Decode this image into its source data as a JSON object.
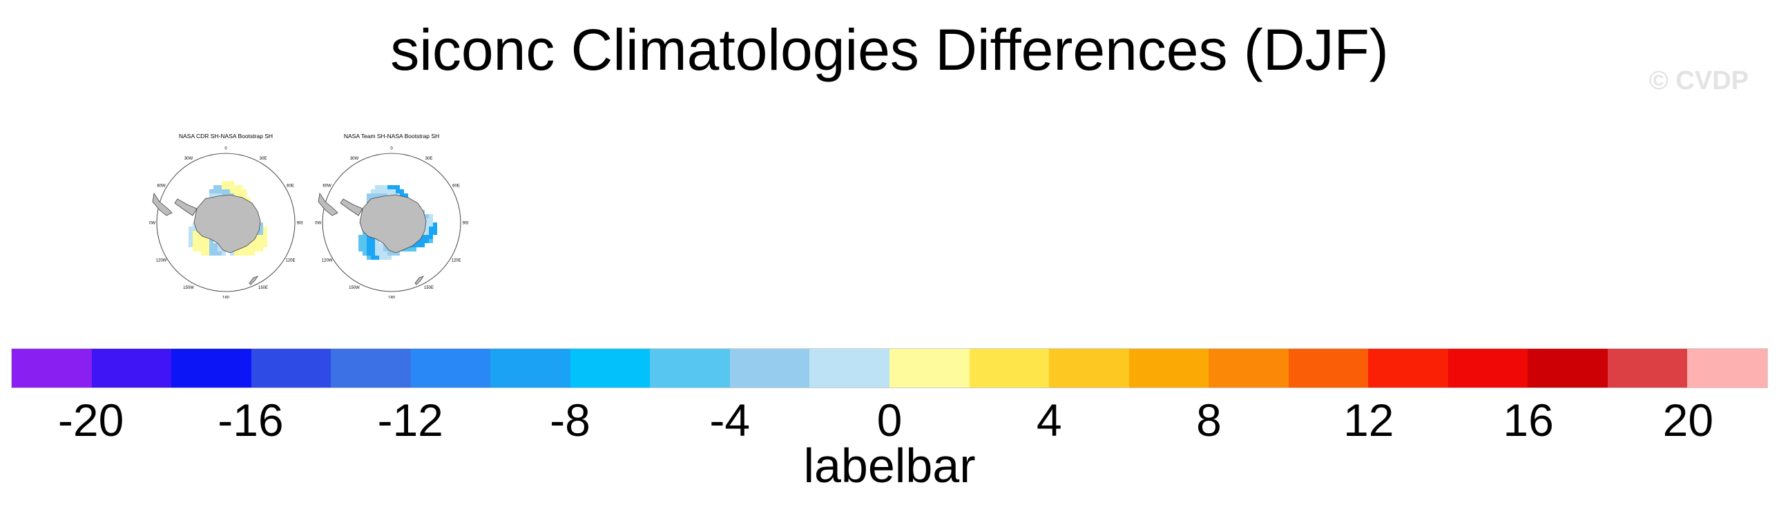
{
  "title": "siconc Climatologies Differences (DJF)",
  "watermark": "© CVDP",
  "panels": [
    {
      "title": "NASA CDR SH-NASA Bootstrap SH",
      "lon_labels": [
        "0",
        "30E",
        "60E",
        "90E",
        "120E",
        "150E",
        "180",
        "150W",
        "120W",
        "90W",
        "60W",
        "30W"
      ],
      "dominant": "positive",
      "ring_colors": [
        "#fdfb9b",
        "#bde2f5",
        "#96cdee",
        "#fdfb9b"
      ]
    },
    {
      "title": "NASA Team SH-NASA Bootstrap SH",
      "lon_labels": [
        "0",
        "30E",
        "60E",
        "90E",
        "120E",
        "150E",
        "180",
        "150W",
        "120W",
        "90W",
        "60W",
        "30W"
      ],
      "dominant": "negative",
      "ring_colors": [
        "#5ac4f0",
        "#96cdee",
        "#bde2f5",
        "#1aa5f5"
      ]
    }
  ],
  "chart_data": {
    "type": "heatmap",
    "title": "siconc Climatologies Differences (DJF)",
    "projection": "south polar stereographic",
    "panels": [
      "NASA CDR SH-NASA Bootstrap SH",
      "NASA Team SH-NASA Bootstrap SH"
    ],
    "colorbar": {
      "title": "labelbar",
      "orientation": "horizontal",
      "range": [
        -22,
        22
      ],
      "step": 2,
      "colors": [
        "#8a1ff2",
        "#3f15f5",
        "#0c15f5",
        "#2f4be6",
        "#3b71e4",
        "#2a88f6",
        "#1ba2f5",
        "#02c1fb",
        "#57c7f2",
        "#96cdee",
        "#bde2f5",
        "#fdfb9b",
        "#fde54a",
        "#fcc821",
        "#fbaa05",
        "#fb8806",
        "#fa5e06",
        "#fa2006",
        "#ef0805",
        "#cc0005",
        "#dc4044",
        "#feb1b1"
      ],
      "tick_values": [
        -20,
        -16,
        -12,
        -8,
        -4,
        0,
        4,
        8,
        12,
        16,
        20
      ],
      "tick_labels": [
        "-20",
        "-16",
        "-12",
        "-8",
        "-4",
        "0",
        "4",
        "8",
        "12",
        "16",
        "20"
      ]
    }
  }
}
